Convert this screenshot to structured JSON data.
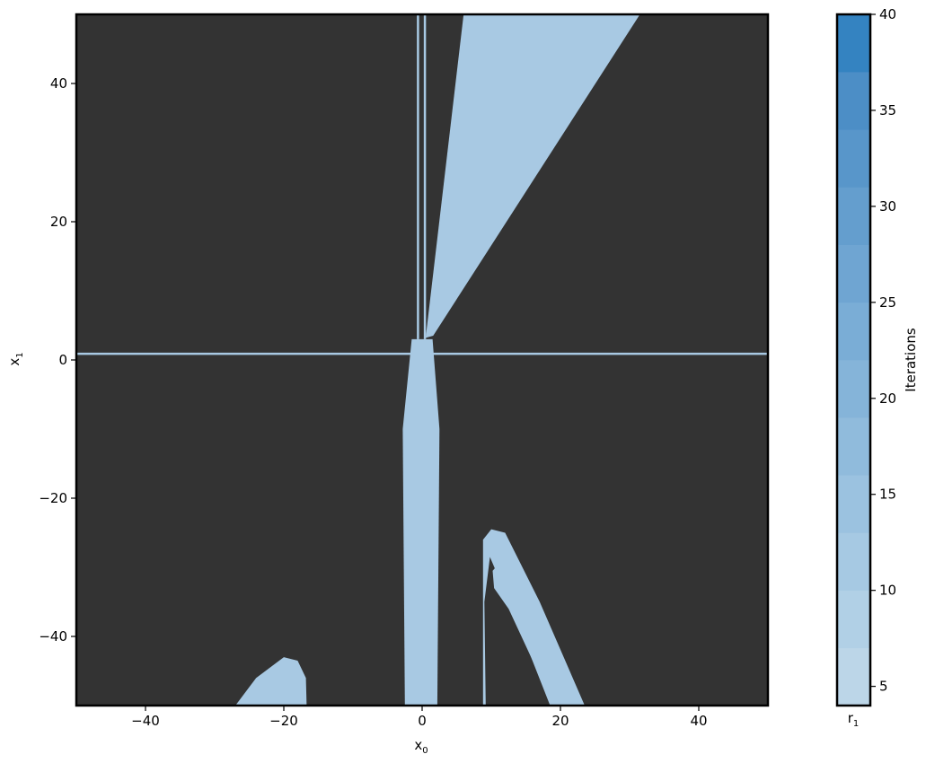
{
  "chart_data": {
    "type": "heatmap",
    "xlabel": "x",
    "xlabel_sub": "0",
    "ylabel": "x",
    "ylabel_sub": "1",
    "xlim": [
      -50,
      50
    ],
    "ylim": [
      -50,
      50
    ],
    "xticks": [
      -40,
      -20,
      0,
      20,
      40
    ],
    "yticks": [
      40,
      20,
      0,
      -20,
      -40
    ],
    "background_color": "#333333",
    "basin_color": "#a8c9e3",
    "basin_regions": [
      {
        "name": "upper-wedge",
        "points": [
          [
            0.5,
            3.2
          ],
          [
            6.0,
            50
          ],
          [
            31.5,
            50
          ],
          [
            1.6,
            3.5
          ]
        ],
        "value": 6
      },
      {
        "name": "central-column",
        "points": [
          [
            -1.5,
            3
          ],
          [
            1.5,
            3
          ],
          [
            2.5,
            -10
          ],
          [
            2.2,
            -50
          ],
          [
            -2.5,
            -50
          ],
          [
            -2.8,
            -10
          ]
        ],
        "value": 7
      },
      {
        "name": "lower-left-lobe",
        "points": [
          [
            -27,
            -50
          ],
          [
            -24,
            -46
          ],
          [
            -20,
            -43
          ],
          [
            -18,
            -43.5
          ],
          [
            -16.8,
            -46
          ],
          [
            -16.7,
            -50
          ]
        ],
        "value": 8
      },
      {
        "name": "lower-right-lobe",
        "points": [
          [
            8.8,
            -26
          ],
          [
            10,
            -24.5
          ],
          [
            12,
            -25
          ],
          [
            17,
            -35
          ],
          [
            23.5,
            -50
          ],
          [
            18.5,
            -50
          ],
          [
            13,
            -36
          ],
          [
            9.8,
            -28.5
          ],
          [
            9,
            -35
          ],
          [
            9.2,
            -50
          ],
          [
            8.8,
            -50
          ]
        ],
        "value": 8
      },
      {
        "name": "lower-right-inner-band",
        "points": [
          [
            10.2,
            -30.5
          ],
          [
            11.5,
            -29
          ],
          [
            14,
            -33
          ],
          [
            20,
            -50
          ],
          [
            19,
            -50
          ],
          [
            12.5,
            -36
          ],
          [
            10.4,
            -33
          ]
        ],
        "value": 9
      }
    ],
    "basin_lines": [
      {
        "name": "horizontal-line",
        "from": [
          -50,
          0.9
        ],
        "to": [
          50,
          0.9
        ],
        "value": 5
      },
      {
        "name": "vertical-line-left",
        "from": [
          -0.6,
          50
        ],
        "to": [
          -0.6,
          3
        ],
        "value": 5
      },
      {
        "name": "vertical-line-center",
        "from": [
          0.4,
          50
        ],
        "to": [
          0.4,
          3
        ],
        "value": 5
      }
    ],
    "colorbar": {
      "label": "Iterations",
      "sublabel": "r",
      "sublabel_sub": "1",
      "min": 4,
      "max": 40,
      "ticks": [
        5,
        10,
        15,
        20,
        25,
        30,
        35,
        40
      ],
      "bands": [
        {
          "from": 4,
          "to": 7,
          "color": "#bcd6e8"
        },
        {
          "from": 7,
          "to": 10,
          "color": "#b1d0e6"
        },
        {
          "from": 10,
          "to": 13,
          "color": "#a6c9e3"
        },
        {
          "from": 13,
          "to": 16,
          "color": "#9bc2e0"
        },
        {
          "from": 16,
          "to": 19,
          "color": "#90bbdc"
        },
        {
          "from": 19,
          "to": 22,
          "color": "#85b4d9"
        },
        {
          "from": 22,
          "to": 25,
          "color": "#7aadd6"
        },
        {
          "from": 25,
          "to": 28,
          "color": "#6fa5d2"
        },
        {
          "from": 28,
          "to": 31,
          "color": "#649ece"
        },
        {
          "from": 31,
          "to": 34,
          "color": "#5896ca"
        },
        {
          "from": 34,
          "to": 37,
          "color": "#4c8ec6"
        },
        {
          "from": 37,
          "to": 40,
          "color": "#3483c1"
        }
      ]
    }
  }
}
